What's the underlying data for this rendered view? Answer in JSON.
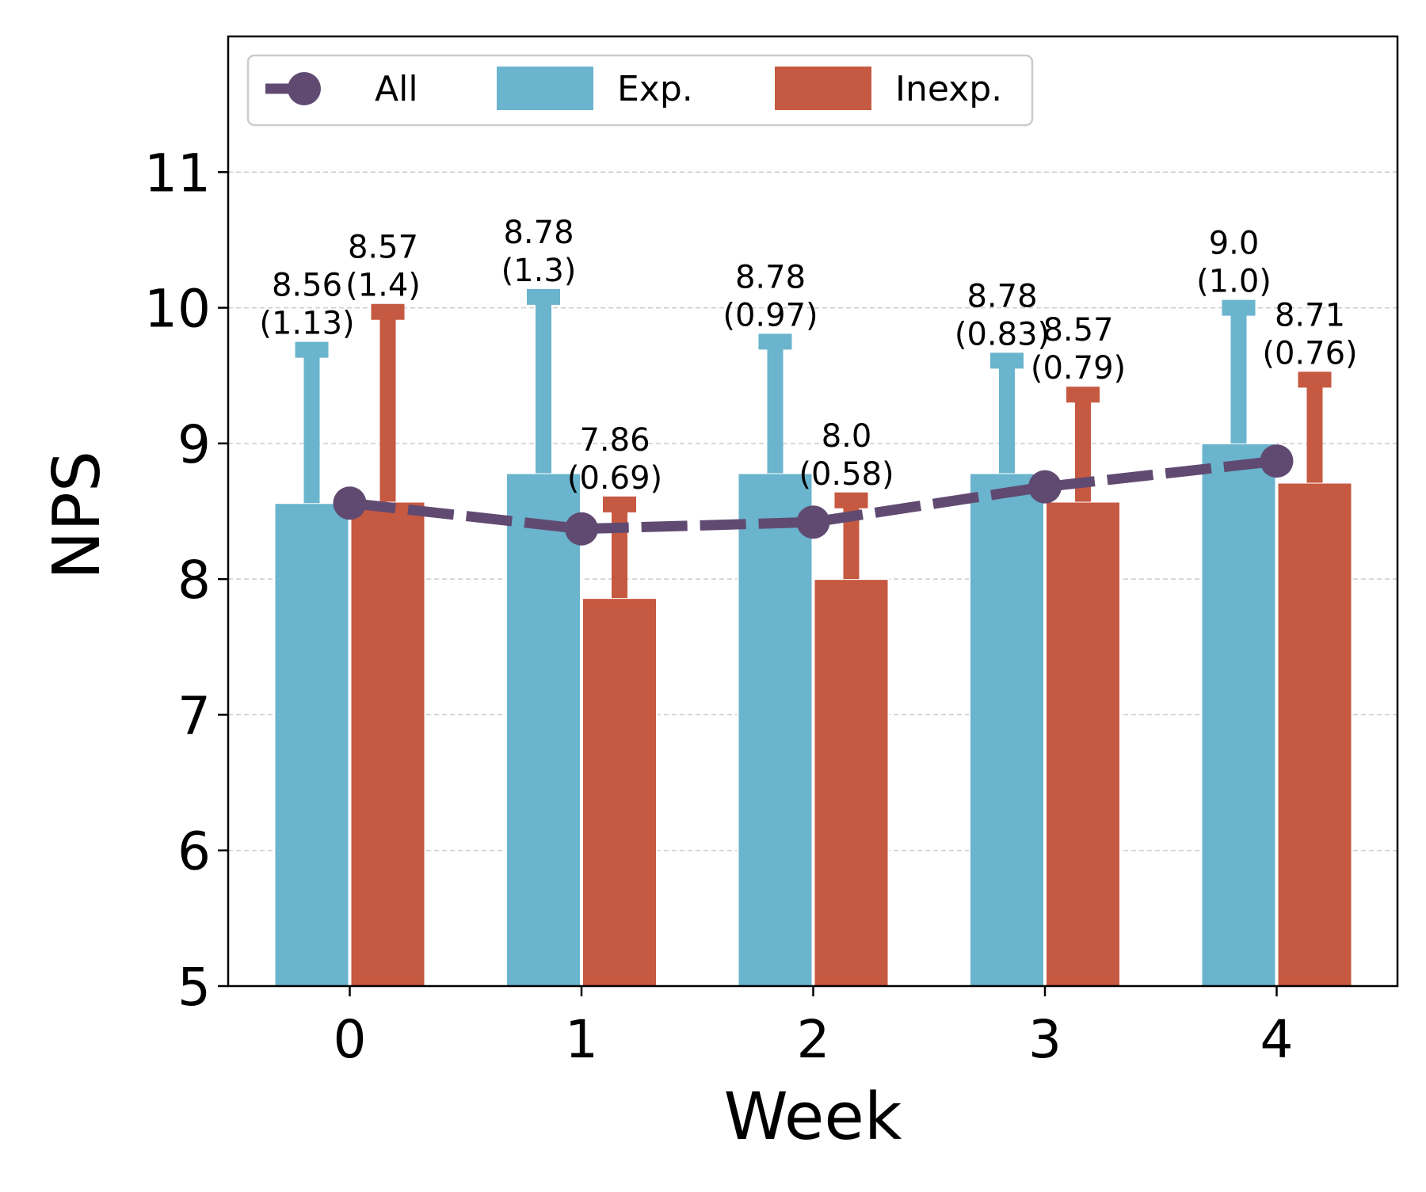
{
  "chart_data": {
    "type": "bar",
    "title": "",
    "xlabel": "Week",
    "ylabel": "NPS",
    "ylim": [
      5,
      12
    ],
    "yticks": [
      5,
      6,
      7,
      8,
      9,
      10,
      11
    ],
    "ytick_labels": [
      "5",
      "6",
      "7",
      "8",
      "9",
      "10",
      "11"
    ],
    "categories": [
      "0",
      "1",
      "2",
      "3",
      "4"
    ],
    "grid": "horizontal dashed",
    "legend_position": "top-left",
    "series": [
      {
        "name": "Exp.",
        "kind": "bar",
        "color": "#6ab4cd",
        "values": [
          8.56,
          8.78,
          8.78,
          8.78,
          9.0
        ],
        "errors": [
          1.13,
          1.3,
          0.97,
          0.83,
          1.0
        ],
        "label_value": [
          "8.56",
          "8.78",
          "8.78",
          "8.78",
          "9.0"
        ],
        "label_error": [
          "(1.13)",
          "(1.3)",
          "(0.97)",
          "(0.83)",
          "(1.0)"
        ]
      },
      {
        "name": "Inexp.",
        "kind": "bar",
        "color": "#c65941",
        "values": [
          8.57,
          7.86,
          8.0,
          8.57,
          8.71
        ],
        "errors": [
          1.4,
          0.69,
          0.58,
          0.79,
          0.76
        ],
        "label_value": [
          "8.57",
          "7.86",
          "8.0",
          "8.57",
          "8.71"
        ],
        "label_error": [
          "(1.4)",
          "(0.69)",
          "(0.58)",
          "(0.79)",
          "(0.76)"
        ]
      },
      {
        "name": "All",
        "kind": "line",
        "color": "#614a72",
        "values": [
          8.56,
          8.37,
          8.42,
          8.68,
          8.87
        ]
      }
    ]
  }
}
